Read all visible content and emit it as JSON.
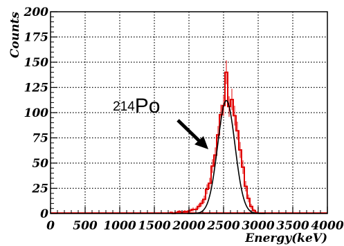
{
  "chart_data": {
    "type": "histogram",
    "xlabel": "Energy(keV)",
    "ylabel": "Counts",
    "xlim": [
      0,
      4000
    ],
    "ylim": [
      0,
      200
    ],
    "xticks": [
      "0",
      "500",
      "1000",
      "1500",
      "2000",
      "2500",
      "3000",
      "3500",
      "4000"
    ],
    "yticks": [
      "0",
      "25",
      "50",
      "75",
      "100",
      "125",
      "150",
      "175",
      "200"
    ],
    "grid": true,
    "bin_width": 40,
    "series": [
      {
        "color": "#e00000",
        "style": "histogram",
        "x": [
          1720,
          1760,
          1800,
          1840,
          1880,
          1920,
          1960,
          2000,
          2040,
          2080,
          2120,
          2160,
          2200,
          2240,
          2280,
          2320,
          2360,
          2400,
          2440,
          2480,
          2520,
          2560,
          2600,
          2640,
          2680,
          2720,
          2760,
          2800,
          2840,
          2880,
          2920,
          2960
        ],
        "values": [
          1,
          0,
          1,
          2,
          1,
          2,
          2,
          3,
          4,
          4,
          7,
          10,
          14,
          24,
          30,
          47,
          58,
          78,
          98,
          107,
          140,
          106,
          113,
          97,
          82,
          63,
          46,
          27,
          15,
          7,
          3,
          1
        ]
      },
      {
        "color": "#000000",
        "style": "gaussian-fit",
        "mean": 2540,
        "sigma": 125,
        "amplitude": 112
      }
    ],
    "annotations": [
      {
        "text": "Po",
        "superscript": "214",
        "arrow_to": [
          2300,
          72
        ]
      }
    ]
  }
}
